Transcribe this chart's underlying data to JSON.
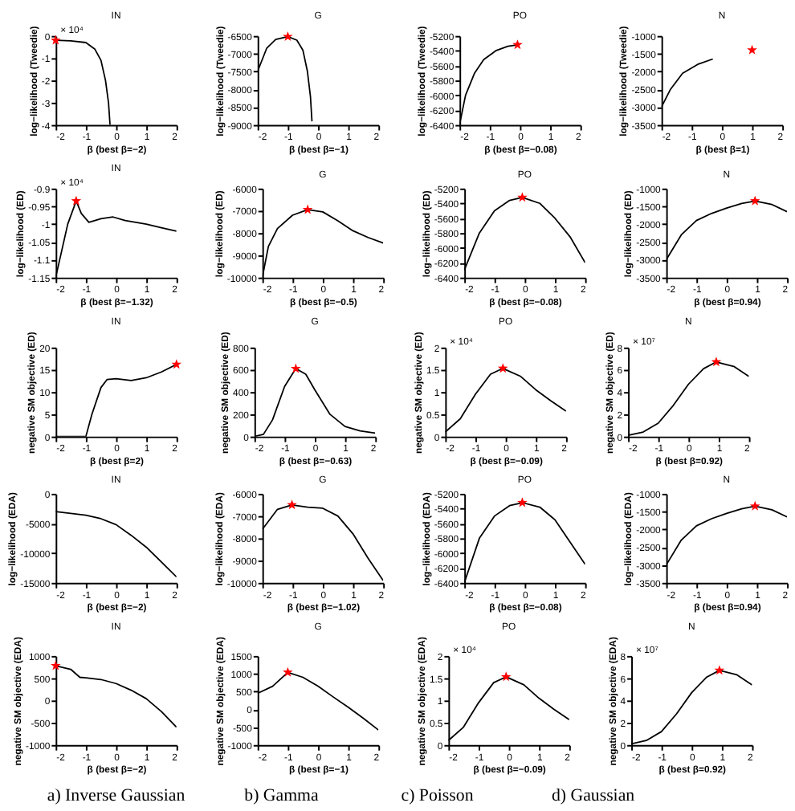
{
  "chart_data": [
    {
      "type": "line",
      "title": "IN",
      "xlabel": "β (best β=−2)",
      "ylabel": "log−likelihood (Tweedie)",
      "xlim": [
        -2,
        2
      ],
      "xticks": [
        -2,
        -1,
        0,
        1,
        2
      ],
      "ylim": [
        -4,
        0
      ],
      "yticks": [
        -4,
        -3,
        -2,
        -1,
        0
      ],
      "annotations": [
        "× 10⁴"
      ],
      "series": [
        {
          "color": "#000000",
          "x": [
            -2,
            -1.5,
            -1,
            -0.7,
            -0.5,
            -0.35,
            -0.25,
            -0.2
          ],
          "values": [
            -0.2,
            -0.22,
            -0.3,
            -0.6,
            -1.1,
            -2,
            -3,
            -4
          ]
        },
        {
          "type": "scatter",
          "marker": "star",
          "color": "#ff0000",
          "x": [
            -2
          ],
          "values": [
            -0.2
          ]
        }
      ]
    },
    {
      "type": "line",
      "title": "G",
      "xlabel": "β (best β=−1)",
      "ylabel": "log−likelihood (Tweedie)",
      "xlim": [
        -2,
        2
      ],
      "xticks": [
        -2,
        -1,
        0,
        1,
        2
      ],
      "ylim": [
        -9000,
        -6500
      ],
      "yticks": [
        -9000,
        -8500,
        -8000,
        -7500,
        -7000,
        -6500
      ],
      "series": [
        {
          "color": "#000000",
          "x": [
            -2,
            -1.7,
            -1.4,
            -1,
            -0.7,
            -0.5,
            -0.35,
            -0.25,
            -0.2
          ],
          "values": [
            -7500,
            -6850,
            -6600,
            -6520,
            -6620,
            -6900,
            -7500,
            -8200,
            -8900
          ]
        },
        {
          "type": "scatter",
          "marker": "star",
          "color": "#ff0000",
          "x": [
            -1
          ],
          "values": [
            -6520
          ]
        }
      ]
    },
    {
      "type": "line",
      "title": "PO",
      "xlabel": "β (best β=−0.08)",
      "ylabel": "log−likelihood (Tweedie)",
      "xlim": [
        -2,
        2
      ],
      "xticks": [
        -2,
        -1,
        0,
        1,
        2
      ],
      "ylim": [
        -6400,
        -5200
      ],
      "yticks": [
        -6400,
        -6200,
        -6000,
        -5800,
        -5600,
        -5400,
        -5200
      ],
      "series": [
        {
          "color": "#000000",
          "x": [
            -2,
            -1.8,
            -1.5,
            -1.2,
            -0.8,
            -0.4,
            -0.08
          ],
          "values": [
            -6400,
            -6000,
            -5700,
            -5520,
            -5400,
            -5340,
            -5320
          ]
        },
        {
          "type": "scatter",
          "marker": "star",
          "color": "#ff0000",
          "x": [
            -0.08
          ],
          "values": [
            -5320
          ]
        }
      ]
    },
    {
      "type": "line",
      "title": "N",
      "xlabel": "β (best β=1)",
      "ylabel": "log−likelihood (Tweedie)",
      "xlim": [
        -2,
        2
      ],
      "xticks": [
        -2,
        -1,
        0,
        1,
        2
      ],
      "ylim": [
        -3500,
        -1000
      ],
      "yticks": [
        -3500,
        -3000,
        -2500,
        -2000,
        -1500,
        -1000
      ],
      "series": [
        {
          "color": "#000000",
          "x": [
            -2,
            -1.7,
            -1.3,
            -0.8,
            -0.3
          ],
          "values": [
            -3000,
            -2500,
            -2050,
            -1800,
            -1650
          ]
        },
        {
          "type": "scatter",
          "marker": "star",
          "color": "#ff0000",
          "x": [
            1
          ],
          "values": [
            -1400
          ]
        }
      ]
    },
    {
      "type": "line",
      "title": "IN",
      "xlabel": "β (best β=−1.32)",
      "ylabel": "log−likelihood (ED)",
      "xlim": [
        -2,
        2
      ],
      "xticks": [
        -2,
        -1,
        0,
        1,
        2
      ],
      "ylim": [
        -1.15,
        -0.9
      ],
      "yticks": [
        -1.15,
        -1.1,
        -1.05,
        -1,
        -0.95,
        -0.9
      ],
      "annotations": [
        "× 10⁴"
      ],
      "series": [
        {
          "color": "#000000",
          "x": [
            -2,
            -1.6,
            -1.32,
            -1.15,
            -0.9,
            -0.5,
            -0.1,
            0.3,
            1,
            1.5,
            2
          ],
          "values": [
            -1.15,
            -1.0,
            -0.935,
            -0.97,
            -0.995,
            -0.985,
            -0.98,
            -0.99,
            -1.0,
            -1.01,
            -1.02
          ]
        },
        {
          "type": "scatter",
          "marker": "star",
          "color": "#ff0000",
          "x": [
            -1.32
          ],
          "values": [
            -0.935
          ]
        }
      ]
    },
    {
      "type": "line",
      "title": "G",
      "xlabel": "β (best β=−0.5)",
      "ylabel": "log−likelihood (ED)",
      "xlim": [
        -2,
        2
      ],
      "xticks": [
        -2,
        -1,
        0,
        1,
        2
      ],
      "ylim": [
        -10000,
        -6000
      ],
      "yticks": [
        -10000,
        -9000,
        -8000,
        -7000,
        -6000
      ],
      "series": [
        {
          "color": "#000000",
          "x": [
            -2,
            -1.8,
            -1.5,
            -1,
            -0.5,
            0,
            0.5,
            1,
            1.5,
            2
          ],
          "values": [
            -10000,
            -8600,
            -7800,
            -7200,
            -6950,
            -7050,
            -7450,
            -7900,
            -8200,
            -8450
          ]
        },
        {
          "type": "scatter",
          "marker": "star",
          "color": "#ff0000",
          "x": [
            -0.5
          ],
          "values": [
            -6950
          ]
        }
      ]
    },
    {
      "type": "line",
      "title": "PO",
      "xlabel": "β (best β=−0.08)",
      "ylabel": "log−likelihood (ED)",
      "xlim": [
        -2,
        2
      ],
      "xticks": [
        -2,
        -1,
        0,
        1,
        2
      ],
      "ylim": [
        -6400,
        -5200
      ],
      "yticks": [
        -6400,
        -6200,
        -6000,
        -5800,
        -5600,
        -5400,
        -5200
      ],
      "series": [
        {
          "color": "#000000",
          "x": [
            -2,
            -1.5,
            -1,
            -0.5,
            -0.08,
            0.5,
            1,
            1.5,
            2
          ],
          "values": [
            -6300,
            -5800,
            -5500,
            -5360,
            -5320,
            -5400,
            -5600,
            -5850,
            -6200
          ]
        },
        {
          "type": "scatter",
          "marker": "star",
          "color": "#ff0000",
          "x": [
            -0.08
          ],
          "values": [
            -5320
          ]
        }
      ]
    },
    {
      "type": "line",
      "title": "N",
      "xlabel": "β (best β=0.94)",
      "ylabel": "log−likelihood (ED)",
      "xlim": [
        -2,
        2
      ],
      "xticks": [
        -2,
        -1,
        0,
        1,
        2
      ],
      "ylim": [
        -3500,
        -1000
      ],
      "yticks": [
        -3500,
        -3000,
        -2500,
        -2000,
        -1500,
        -1000
      ],
      "series": [
        {
          "color": "#000000",
          "x": [
            -2,
            -1.5,
            -1,
            -0.5,
            0,
            0.5,
            0.94,
            1.5,
            2
          ],
          "values": [
            -3000,
            -2300,
            -1900,
            -1700,
            -1550,
            -1420,
            -1350,
            -1450,
            -1650
          ]
        },
        {
          "type": "scatter",
          "marker": "star",
          "color": "#ff0000",
          "x": [
            0.94
          ],
          "values": [
            -1350
          ]
        }
      ]
    },
    {
      "type": "line",
      "title": "IN",
      "xlabel": "β (best β=2)",
      "ylabel": "negative SM objective (ED)",
      "xlim": [
        -2,
        2
      ],
      "xticks": [
        -2,
        -1,
        0,
        1,
        2
      ],
      "ylim": [
        0,
        20
      ],
      "yticks": [
        0,
        5,
        10,
        15,
        20
      ],
      "series": [
        {
          "color": "#000000",
          "x": [
            -2,
            -1,
            -0.8,
            -0.5,
            -0.3,
            0,
            0.5,
            1,
            1.5,
            2
          ],
          "values": [
            0,
            0,
            5,
            11,
            12.8,
            13,
            12.6,
            13.2,
            14.5,
            16.2
          ]
        },
        {
          "type": "scatter",
          "marker": "star",
          "color": "#ff0000",
          "x": [
            2
          ],
          "values": [
            16.2
          ]
        }
      ]
    },
    {
      "type": "line",
      "title": "G",
      "xlabel": "β (best β=−0.63)",
      "ylabel": "negative SM objective (ED)",
      "xlim": [
        -2,
        2
      ],
      "xticks": [
        -2,
        -1,
        0,
        1,
        2
      ],
      "ylim": [
        0,
        800
      ],
      "yticks": [
        0,
        200,
        400,
        600,
        800
      ],
      "series": [
        {
          "color": "#000000",
          "x": [
            -2,
            -1.7,
            -1.4,
            -1,
            -0.63,
            -0.3,
            0,
            0.5,
            1,
            1.5,
            2
          ],
          "values": [
            0,
            20,
            150,
            450,
            610,
            560,
            420,
            200,
            90,
            50,
            30
          ]
        },
        {
          "type": "scatter",
          "marker": "star",
          "color": "#ff0000",
          "x": [
            -0.63
          ],
          "values": [
            610
          ]
        }
      ]
    },
    {
      "type": "line",
      "title": "PO",
      "xlabel": "β (best β=−0.09)",
      "ylabel": "negative SM objective (ED)",
      "xlim": [
        -2,
        2
      ],
      "xticks": [
        -2,
        -1,
        0,
        1,
        2
      ],
      "ylim": [
        0,
        2
      ],
      "yticks": [
        0,
        0.5,
        1,
        1.5,
        2
      ],
      "annotations": [
        "× 10⁴"
      ],
      "series": [
        {
          "color": "#000000",
          "x": [
            -2,
            -1.5,
            -1,
            -0.5,
            -0.09,
            0.5,
            1,
            1.5,
            2
          ],
          "values": [
            0.1,
            0.4,
            0.95,
            1.4,
            1.53,
            1.35,
            1.05,
            0.8,
            0.57
          ]
        },
        {
          "type": "scatter",
          "marker": "star",
          "color": "#ff0000",
          "x": [
            -0.09
          ],
          "values": [
            1.53
          ]
        }
      ]
    },
    {
      "type": "line",
      "title": "N",
      "xlabel": "β (best β=0.92)",
      "ylabel": "negative SM objective (ED)",
      "xlim": [
        -2,
        2
      ],
      "xticks": [
        -2,
        -1,
        0,
        1,
        2
      ],
      "ylim": [
        0,
        8
      ],
      "yticks": [
        0,
        2,
        4,
        6,
        8
      ],
      "annotations": [
        "× 10⁷"
      ],
      "series": [
        {
          "color": "#000000",
          "x": [
            -2,
            -1.5,
            -1,
            -0.5,
            0,
            0.5,
            0.92,
            1.5,
            2
          ],
          "values": [
            0.1,
            0.4,
            1.2,
            2.8,
            4.7,
            6.1,
            6.7,
            6.3,
            5.4
          ]
        },
        {
          "type": "scatter",
          "marker": "star",
          "color": "#ff0000",
          "x": [
            0.92
          ],
          "values": [
            6.7
          ]
        }
      ]
    },
    {
      "type": "line",
      "title": "IN",
      "xlabel": "β (best β=−2)",
      "ylabel": "log−likelihood (EDA)",
      "xlim": [
        -2,
        2
      ],
      "xticks": [
        -2,
        -1,
        0,
        1,
        2
      ],
      "ylim": [
        -15000,
        0
      ],
      "yticks": [
        -15000,
        -10000,
        -5000,
        0
      ],
      "series": [
        {
          "color": "#000000",
          "x": [
            -2,
            -1.5,
            -1,
            -0.5,
            0,
            0.5,
            1,
            1.5,
            2
          ],
          "values": [
            -3000,
            -3300,
            -3600,
            -4200,
            -5200,
            -7000,
            -9000,
            -11500,
            -14000
          ]
        }
      ]
    },
    {
      "type": "line",
      "title": "G",
      "xlabel": "β (best β=−1.02)",
      "ylabel": "log−likelihood (EDA)",
      "xlim": [
        -2,
        2
      ],
      "xticks": [
        -2,
        -1,
        0,
        1,
        2
      ],
      "ylim": [
        -10000,
        -6000
      ],
      "yticks": [
        -10000,
        -9000,
        -8000,
        -7000,
        -6000
      ],
      "series": [
        {
          "color": "#000000",
          "x": [
            -2,
            -1.5,
            -1.02,
            -0.5,
            0,
            0.5,
            1,
            1.5,
            2
          ],
          "values": [
            -7600,
            -6700,
            -6500,
            -6600,
            -6650,
            -7000,
            -7800,
            -8900,
            -9900
          ]
        },
        {
          "type": "scatter",
          "marker": "star",
          "color": "#ff0000",
          "x": [
            -1.02
          ],
          "values": [
            -6500
          ]
        }
      ]
    },
    {
      "type": "line",
      "title": "PO",
      "xlabel": "β (best β=−0.08)",
      "ylabel": "log−likelihood (EDA)",
      "xlim": [
        -2,
        2
      ],
      "xticks": [
        -2,
        -1,
        0,
        1,
        2
      ],
      "ylim": [
        -6400,
        -5200
      ],
      "yticks": [
        -6400,
        -6200,
        -6000,
        -5800,
        -5600,
        -5400,
        -5200
      ],
      "series": [
        {
          "color": "#000000",
          "x": [
            -2,
            -1.5,
            -1,
            -0.5,
            -0.08,
            0.5,
            1,
            1.5,
            2
          ],
          "values": [
            -6400,
            -5800,
            -5500,
            -5360,
            -5320,
            -5380,
            -5550,
            -5850,
            -6150
          ]
        },
        {
          "type": "scatter",
          "marker": "star",
          "color": "#ff0000",
          "x": [
            -0.08
          ],
          "values": [
            -5320
          ]
        }
      ]
    },
    {
      "type": "line",
      "title": "N",
      "xlabel": "β (best β=0.94)",
      "ylabel": "log−likelihood (EDA)",
      "xlim": [
        -2,
        2
      ],
      "xticks": [
        -2,
        -1,
        0,
        1,
        2
      ],
      "ylim": [
        -3500,
        -1000
      ],
      "yticks": [
        -3500,
        -3000,
        -2500,
        -2000,
        -1500,
        -1000
      ],
      "series": [
        {
          "color": "#000000",
          "x": [
            -2,
            -1.5,
            -1,
            -0.5,
            0,
            0.5,
            0.94,
            1.5,
            2
          ],
          "values": [
            -3000,
            -2300,
            -1900,
            -1700,
            -1550,
            -1420,
            -1350,
            -1450,
            -1650
          ]
        },
        {
          "type": "scatter",
          "marker": "star",
          "color": "#ff0000",
          "x": [
            0.94
          ],
          "values": [
            -1350
          ]
        }
      ]
    },
    {
      "type": "line",
      "title": "IN",
      "xlabel": "β (best β=−2)",
      "ylabel": "negative SM objective (EDA)",
      "xlim": [
        -2,
        2
      ],
      "xticks": [
        -2,
        -1,
        0,
        1,
        2
      ],
      "ylim": [
        -1000,
        1000
      ],
      "yticks": [
        -1000,
        -500,
        0,
        500,
        1000
      ],
      "series": [
        {
          "color": "#000000",
          "x": [
            -2,
            -1.5,
            -1.2,
            -1,
            -0.5,
            0,
            0.5,
            1,
            1.5,
            2
          ],
          "values": [
            780,
            700,
            520,
            510,
            470,
            380,
            230,
            40,
            -250,
            -600
          ]
        },
        {
          "type": "scatter",
          "marker": "star",
          "color": "#ff0000",
          "x": [
            -2
          ],
          "values": [
            780
          ]
        }
      ]
    },
    {
      "type": "line",
      "title": "G",
      "xlabel": "β (best β=−1)",
      "ylabel": "negative SM objective (EDA)",
      "xlim": [
        -2,
        2
      ],
      "xticks": [
        -2,
        -1,
        0,
        1,
        2
      ],
      "ylim": [
        -1000,
        1500
      ],
      "yticks": [
        -1000,
        -500,
        0,
        500,
        1000,
        1500
      ],
      "series": [
        {
          "color": "#000000",
          "x": [
            -2,
            -1.5,
            -1,
            -0.5,
            0,
            0.5,
            1,
            1.5,
            2
          ],
          "values": [
            450,
            650,
            1040,
            900,
            650,
            350,
            60,
            -250,
            -580
          ]
        },
        {
          "type": "scatter",
          "marker": "star",
          "color": "#ff0000",
          "x": [
            -1
          ],
          "values": [
            1040
          ]
        }
      ]
    },
    {
      "type": "line",
      "title": "PO",
      "xlabel": "β (best β=−0.09)",
      "ylabel": "negative SM objective (EDA)",
      "xlim": [
        -2,
        2
      ],
      "xticks": [
        -2,
        -1,
        0,
        1,
        2
      ],
      "ylim": [
        0,
        2
      ],
      "yticks": [
        0,
        0.5,
        1,
        1.5,
        2
      ],
      "annotations": [
        "× 10⁴"
      ],
      "series": [
        {
          "color": "#000000",
          "x": [
            -2,
            -1.5,
            -1,
            -0.5,
            -0.09,
            0.5,
            1,
            1.5,
            2
          ],
          "values": [
            0.1,
            0.4,
            0.95,
            1.4,
            1.53,
            1.35,
            1.05,
            0.8,
            0.57
          ]
        },
        {
          "type": "scatter",
          "marker": "star",
          "color": "#ff0000",
          "x": [
            -0.09
          ],
          "values": [
            1.53
          ]
        }
      ]
    },
    {
      "type": "line",
      "title": "N",
      "xlabel": "β (best β=0.92)",
      "ylabel": "negative SM objective (EDA)",
      "xlim": [
        -2,
        2
      ],
      "xticks": [
        -2,
        -1,
        0,
        1,
        2
      ],
      "ylim": [
        0,
        8
      ],
      "yticks": [
        0,
        2,
        4,
        6,
        8
      ],
      "annotations": [
        "× 10⁷"
      ],
      "series": [
        {
          "color": "#000000",
          "x": [
            -2,
            -1.5,
            -1,
            -0.5,
            0,
            0.5,
            0.92,
            1.5,
            2
          ],
          "values": [
            0.1,
            0.4,
            1.2,
            2.8,
            4.7,
            6.1,
            6.7,
            6.3,
            5.4
          ]
        },
        {
          "type": "scatter",
          "marker": "star",
          "color": "#ff0000",
          "x": [
            0.92
          ],
          "values": [
            6.7
          ]
        }
      ]
    },
    {
      "type": "other",
      "title": "a) Inverse Gaussian"
    },
    {
      "type": "other",
      "title": "b) Gamma"
    },
    {
      "type": "other",
      "title": "c) Poisson"
    },
    {
      "type": "other",
      "title": "d) Gaussian"
    }
  ]
}
